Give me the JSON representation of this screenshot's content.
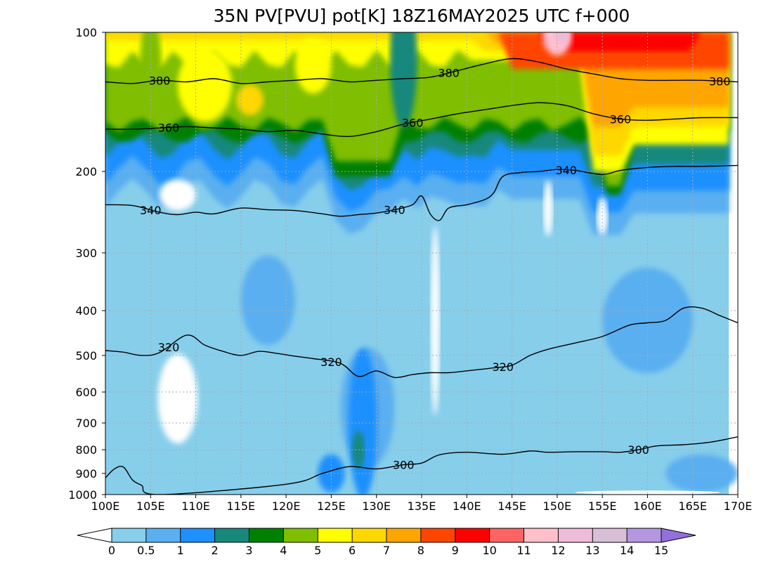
{
  "chart_data": {
    "type": "heatmap",
    "title": "35N PV[PVU] pot[K] 18Z16MAY2025 UTC f+000",
    "x_ticks": [
      "100E",
      "105E",
      "110E",
      "115E",
      "120E",
      "125E",
      "130E",
      "135E",
      "140E",
      "145E",
      "150E",
      "155E",
      "160E",
      "165E",
      "170E"
    ],
    "x_values": [
      100,
      105,
      110,
      115,
      120,
      125,
      130,
      135,
      140,
      145,
      150,
      155,
      160,
      165,
      170
    ],
    "xlim": [
      100,
      170
    ],
    "y_ticks": [
      "100",
      "200",
      "300",
      "400",
      "500",
      "600",
      "700",
      "800",
      "900",
      "1000"
    ],
    "y_values": [
      100,
      200,
      300,
      400,
      500,
      600,
      700,
      800,
      900,
      1000
    ],
    "ylim": [
      1000,
      100
    ],
    "y_scale": "log",
    "grid": true,
    "colorbar": {
      "levels": [
        "0",
        "0.5",
        "1",
        "2",
        "3",
        "4",
        "5",
        "6",
        "7",
        "8",
        "9",
        "10",
        "11",
        "12",
        "13",
        "14",
        "15"
      ],
      "colors": [
        "#87ceeb",
        "#5aaff0",
        "#1e90ff",
        "#17887c",
        "#008000",
        "#7fbe00",
        "#ffff00",
        "#ffd700",
        "#ffa500",
        "#ff4500",
        "#ff0000",
        "#ff6464",
        "#ffc0cb",
        "#eebbd8",
        "#d8bfd8",
        "#b497e0"
      ],
      "under_color": "#ffffff",
      "over_color": "#9370db"
    },
    "contour_levels": [
      300,
      320,
      340,
      360,
      380
    ],
    "contours": [
      {
        "level": 380,
        "label": "380",
        "points": [
          [
            100,
            128
          ],
          [
            103,
            129
          ],
          [
            106,
            127
          ],
          [
            109,
            128
          ],
          [
            112,
            126
          ],
          [
            115,
            129
          ],
          [
            118,
            128
          ],
          [
            121,
            127
          ],
          [
            124,
            126
          ],
          [
            127,
            128
          ],
          [
            130,
            127
          ],
          [
            133,
            126
          ],
          [
            136,
            125
          ],
          [
            139,
            121
          ],
          [
            142,
            117
          ],
          [
            145,
            114
          ],
          [
            148,
            116
          ],
          [
            151,
            120
          ],
          [
            154,
            123
          ],
          [
            157,
            126
          ],
          [
            160,
            127
          ],
          [
            163,
            127
          ],
          [
            166,
            127
          ],
          [
            170,
            128
          ]
        ]
      },
      {
        "level": 360,
        "label": "360",
        "points": [
          [
            100,
            162
          ],
          [
            103,
            162
          ],
          [
            106,
            161
          ],
          [
            109,
            160
          ],
          [
            112,
            161
          ],
          [
            115,
            162
          ],
          [
            118,
            164
          ],
          [
            121,
            163
          ],
          [
            124,
            166
          ],
          [
            127,
            168
          ],
          [
            130,
            164
          ],
          [
            133,
            158
          ],
          [
            136,
            154
          ],
          [
            139,
            150
          ],
          [
            142,
            147
          ],
          [
            145,
            144
          ],
          [
            148,
            142
          ],
          [
            151,
            144
          ],
          [
            154,
            150
          ],
          [
            157,
            154
          ],
          [
            160,
            155
          ],
          [
            163,
            154
          ],
          [
            166,
            153
          ],
          [
            170,
            153
          ]
        ]
      },
      {
        "level": 340,
        "label": "340",
        "points": [
          [
            100,
            236
          ],
          [
            103,
            237
          ],
          [
            106,
            245
          ],
          [
            108,
            248
          ],
          [
            110,
            245
          ],
          [
            112,
            247
          ],
          [
            115,
            240
          ],
          [
            118,
            242
          ],
          [
            121,
            243
          ],
          [
            124,
            247
          ],
          [
            126,
            250
          ],
          [
            128,
            248
          ],
          [
            130,
            246
          ],
          [
            132,
            242
          ],
          [
            134,
            236
          ],
          [
            135,
            226
          ],
          [
            136,
            248
          ],
          [
            137,
            255
          ],
          [
            138,
            240
          ],
          [
            140,
            236
          ],
          [
            142,
            230
          ],
          [
            143,
            222
          ],
          [
            144,
            205
          ],
          [
            146,
            201
          ],
          [
            148,
            200
          ],
          [
            150,
            198
          ],
          [
            152,
            199
          ],
          [
            155,
            203
          ],
          [
            157,
            199
          ],
          [
            160,
            196
          ],
          [
            163,
            195
          ],
          [
            166,
            195
          ],
          [
            170,
            194
          ]
        ]
      },
      {
        "level": 320,
        "label": "320",
        "points": [
          [
            100,
            488
          ],
          [
            102,
            492
          ],
          [
            104,
            500
          ],
          [
            106,
            493
          ],
          [
            109,
            452
          ],
          [
            111,
            475
          ],
          [
            113,
            490
          ],
          [
            115,
            500
          ],
          [
            117,
            490
          ],
          [
            119,
            495
          ],
          [
            121,
            502
          ],
          [
            123,
            508
          ],
          [
            126,
            520
          ],
          [
            128,
            555
          ],
          [
            130,
            540
          ],
          [
            132,
            558
          ],
          [
            134,
            550
          ],
          [
            136,
            545
          ],
          [
            138,
            545
          ],
          [
            140,
            540
          ],
          [
            143,
            532
          ],
          [
            145,
            525
          ],
          [
            147,
            500
          ],
          [
            149,
            485
          ],
          [
            152,
            470
          ],
          [
            155,
            455
          ],
          [
            158,
            430
          ],
          [
            160,
            425
          ],
          [
            162,
            420
          ],
          [
            164,
            395
          ],
          [
            166,
            395
          ],
          [
            168,
            410
          ],
          [
            170,
            425
          ]
        ]
      },
      {
        "level": 300,
        "label": "300",
        "points": [
          [
            100,
            920
          ],
          [
            101,
            880
          ],
          [
            102,
            872
          ],
          [
            103,
            930
          ],
          [
            104,
            955
          ],
          [
            106,
            1000
          ],
          [
            120,
            950
          ],
          [
            124,
            900
          ],
          [
            127,
            870
          ],
          [
            130,
            880
          ],
          [
            133,
            862
          ],
          [
            135,
            855
          ],
          [
            137,
            820
          ],
          [
            140,
            810
          ],
          [
            144,
            818
          ],
          [
            147,
            805
          ],
          [
            149,
            810
          ],
          [
            152,
            808
          ],
          [
            155,
            808
          ],
          [
            157,
            810
          ],
          [
            159,
            800
          ],
          [
            161,
            785
          ],
          [
            164,
            780
          ],
          [
            167,
            770
          ],
          [
            170,
            750
          ]
        ]
      }
    ]
  }
}
